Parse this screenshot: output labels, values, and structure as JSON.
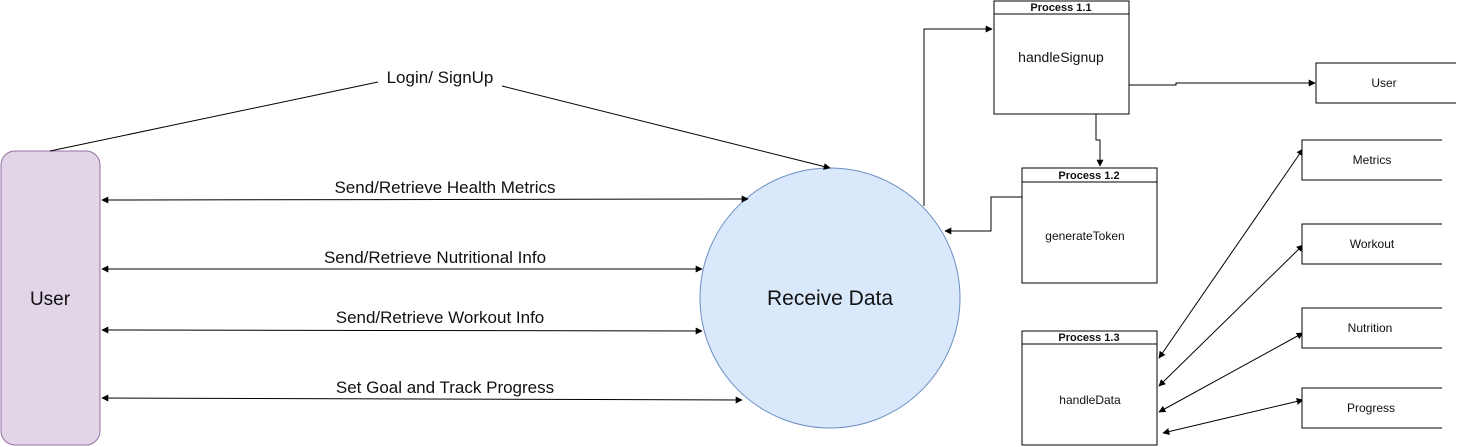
{
  "entities": {
    "user": "User",
    "receive": "Receive Data"
  },
  "flows": {
    "login": "Login/ SignUp",
    "health": "Send/Retrieve Health Metrics",
    "nutritional": "Send/Retrieve Nutritional Info",
    "workout": "Send/Retrieve Workout Info",
    "goal": "Set Goal and Track Progress"
  },
  "processes": {
    "p11": {
      "header": "Process 1.1",
      "name": "handleSignup"
    },
    "p12": {
      "header": "Process 1.2",
      "name": "generateToken"
    },
    "p13": {
      "header": "Process 1.3",
      "name": "handleData"
    }
  },
  "stores": {
    "user": "User",
    "metrics": "Metrics",
    "workout": "Workout",
    "nutrition": "Nutrition",
    "progress": "Progress"
  },
  "colors": {
    "user_fill": "#e1d5e7",
    "user_stroke": "#9673a6",
    "receive_fill": "#dae8fc",
    "receive_stroke": "#6c8ebf",
    "line": "#000000"
  }
}
